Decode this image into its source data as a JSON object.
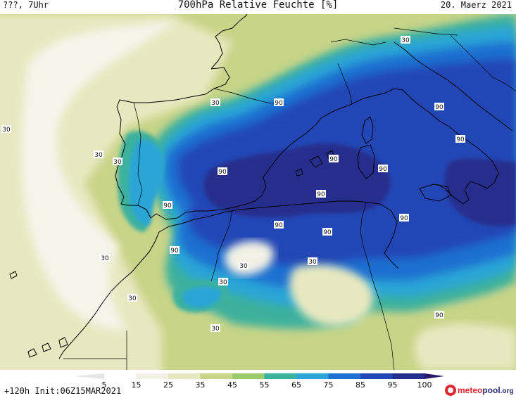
{
  "header": {
    "left": "???, 7Uhr",
    "title": "700hPa Relative Feuchte [%]",
    "date": "20. Maerz 2021"
  },
  "colors": {
    "v5": "#ffffff",
    "v15": "#f1f1e5",
    "v25": "#e8e8c0",
    "v35": "#c8d488",
    "v45": "#9acb6c",
    "v55": "#3cb19d",
    "v65": "#2aa5d6",
    "v75": "#1f6fd0",
    "v85": "#2347b5",
    "v95": "#262e8d",
    "v100": "#2a1a6a"
  },
  "contour_labels": [
    {
      "text": "30"
    },
    {
      "text": "30"
    },
    {
      "text": "30"
    },
    {
      "text": "30"
    },
    {
      "text": "30"
    },
    {
      "text": "30"
    },
    {
      "text": "30"
    },
    {
      "text": "30"
    },
    {
      "text": "30"
    },
    {
      "text": "30"
    },
    {
      "text": "30"
    },
    {
      "text": "90"
    },
    {
      "text": "90"
    },
    {
      "text": "90"
    },
    {
      "text": "90"
    },
    {
      "text": "90"
    },
    {
      "text": "90"
    },
    {
      "text": "90"
    },
    {
      "text": "90"
    },
    {
      "text": "90"
    },
    {
      "text": "90"
    },
    {
      "text": "90"
    },
    {
      "text": "90"
    },
    {
      "text": "90"
    }
  ],
  "colorbar": {
    "ticks": [
      "5",
      "15",
      "25",
      "35",
      "45",
      "55",
      "65",
      "75",
      "85",
      "95",
      "100"
    ]
  },
  "footer": {
    "init": "+120h  Init:06Z15MAR2021",
    "logo_meteo": "meteo",
    "logo_pool": "pool",
    "logo_suffix": ".org"
  }
}
